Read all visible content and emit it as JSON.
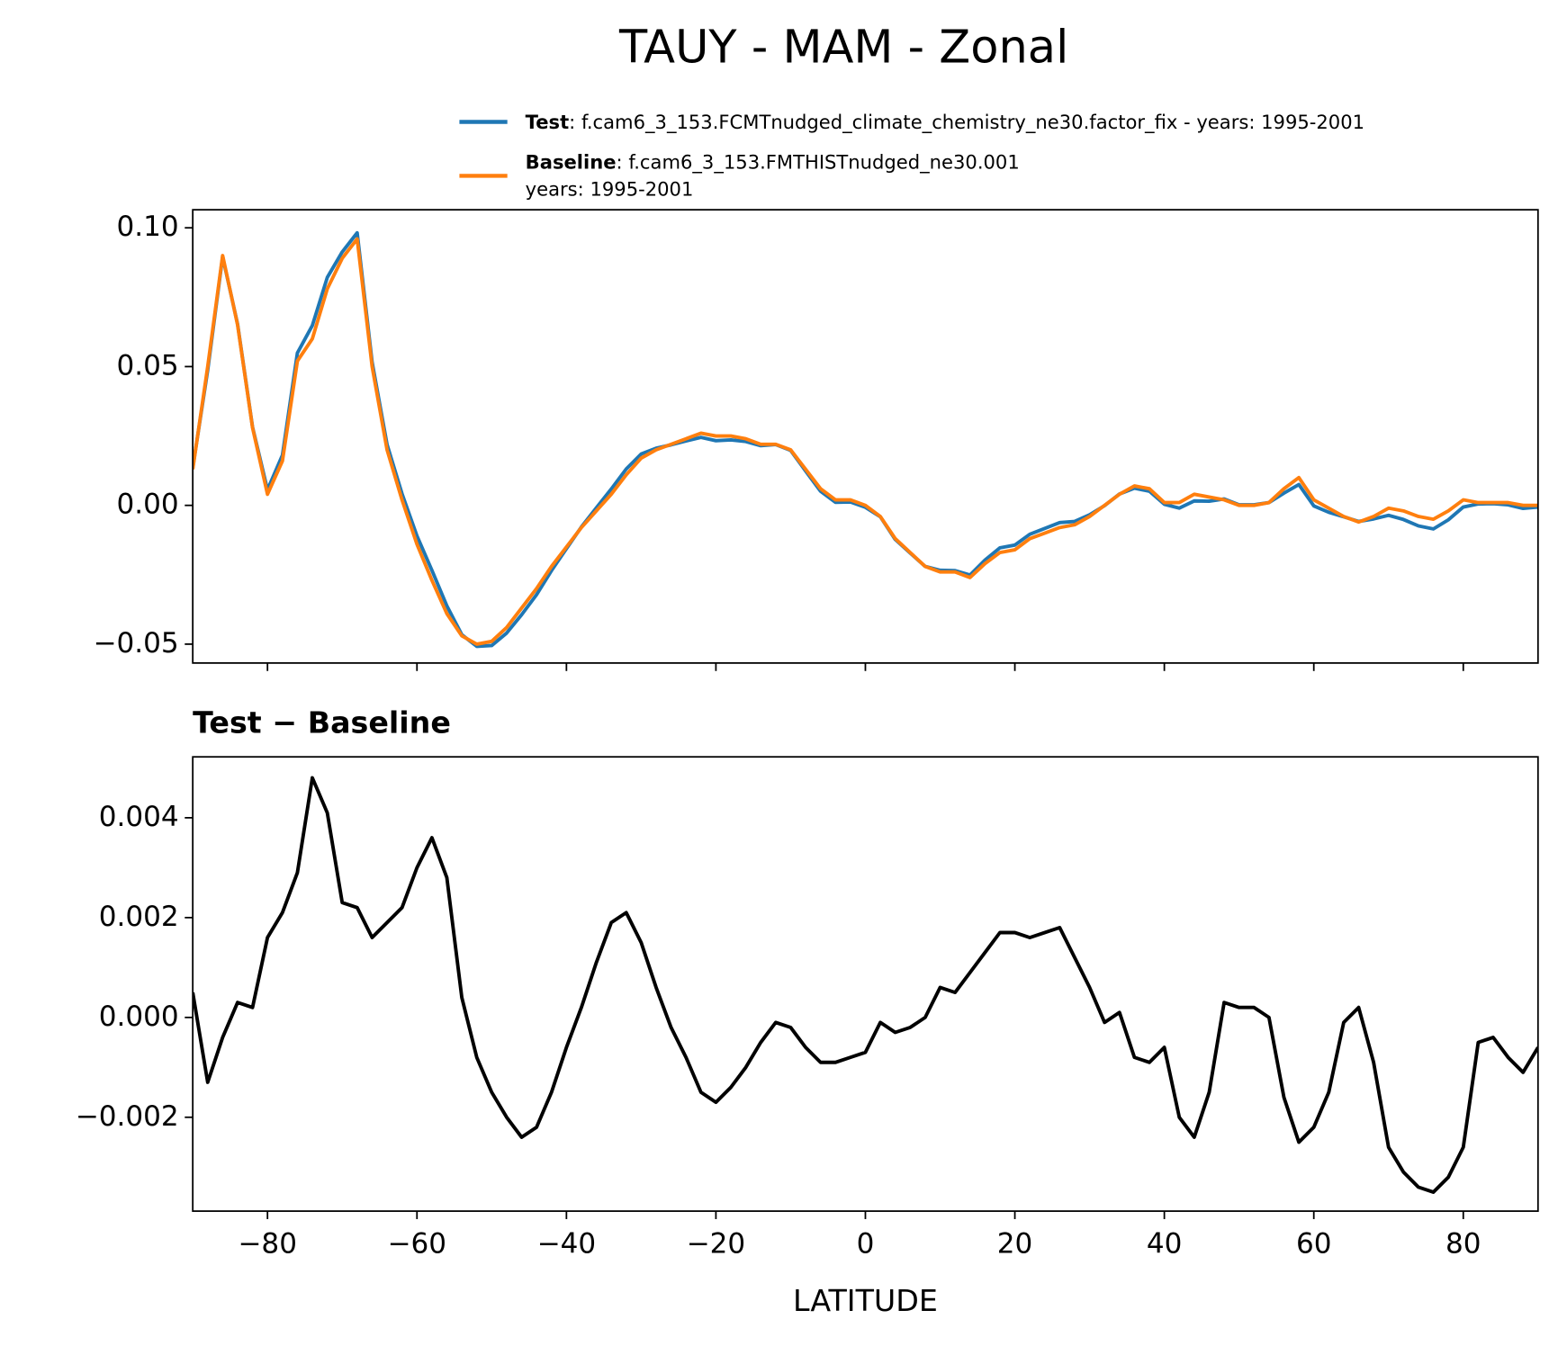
{
  "chart_data": [
    {
      "type": "line",
      "title": "TAUY - MAM - Zonal",
      "x": [
        -90,
        -88,
        -86,
        -84,
        -82,
        -80,
        -78,
        -76,
        -74,
        -72,
        -70,
        -68,
        -66,
        -64,
        -62,
        -60,
        -58,
        -56,
        -54,
        -52,
        -50,
        -48,
        -46,
        -44,
        -42,
        -40,
        -38,
        -36,
        -34,
        -32,
        -30,
        -28,
        -26,
        -24,
        -22,
        -20,
        -18,
        -16,
        -14,
        -12,
        -10,
        -8,
        -6,
        -4,
        -2,
        0,
        2,
        4,
        6,
        8,
        10,
        12,
        14,
        16,
        18,
        20,
        22,
        24,
        26,
        28,
        30,
        32,
        34,
        36,
        38,
        40,
        42,
        44,
        46,
        48,
        50,
        52,
        54,
        56,
        58,
        60,
        62,
        64,
        66,
        68,
        70,
        72,
        74,
        76,
        78,
        80,
        82,
        84,
        86,
        88,
        90
      ],
      "series": [
        {
          "name": "Test",
          "description": [
            ": f.cam6_3_153.FCMTnudged_climate_chemistry_ne30.factor_fix - years: 1995-2001"
          ],
          "color": "#1f77b4",
          "values": [
            0.0135,
            0.0487,
            0.0896,
            0.0653,
            0.0282,
            0.0056,
            0.0181,
            0.0549,
            0.0648,
            0.0821,
            0.0913,
            0.0982,
            0.0516,
            0.0219,
            0.0042,
            -0.011,
            -0.0234,
            -0.0362,
            -0.0466,
            -0.0508,
            -0.0505,
            -0.046,
            -0.0394,
            -0.0322,
            -0.0235,
            -0.0156,
            -0.0078,
            -0.0009,
            0.0059,
            0.0131,
            0.0185,
            0.0206,
            0.0218,
            0.0232,
            0.0245,
            0.0233,
            0.0236,
            0.023,
            0.0215,
            0.0219,
            0.0198,
            0.0124,
            0.0051,
            0.0011,
            0.0012,
            -0.0007,
            -0.0041,
            -0.0123,
            -0.0172,
            -0.022,
            -0.0234,
            -0.0235,
            -0.0251,
            -0.0197,
            -0.0153,
            -0.0143,
            -0.0104,
            -0.0083,
            -0.0062,
            -0.0058,
            -0.0034,
            -0.0001,
            0.0041,
            0.0062,
            0.0051,
            0.0004,
            -0.001,
            0.0016,
            0.0015,
            0.0023,
            0.0002,
            0.0002,
            0.001,
            0.0044,
            0.0075,
            -0.0002,
            -0.0025,
            -0.0041,
            -0.0058,
            -0.0049,
            -0.0036,
            -0.0051,
            -0.0074,
            -0.0085,
            -0.0052,
            -0.0006,
            0.0005,
            0.0006,
            0.0002,
            -0.0011,
            -0.0006
          ]
        },
        {
          "name": "Baseline",
          "description": [
            ": f.cam6_3_153.FMTHISTnudged_ne30.001",
            "years: 1995-2001"
          ],
          "color": "#ff7f0e",
          "values": [
            0.013,
            0.05,
            0.09,
            0.065,
            0.028,
            0.004,
            0.016,
            0.052,
            0.06,
            0.078,
            0.089,
            0.096,
            0.05,
            0.02,
            0.002,
            -0.014,
            -0.027,
            -0.039,
            -0.047,
            -0.05,
            -0.049,
            -0.044,
            -0.037,
            -0.03,
            -0.022,
            -0.015,
            -0.008,
            -0.002,
            0.004,
            0.011,
            0.017,
            0.02,
            0.022,
            0.024,
            0.026,
            0.025,
            0.025,
            0.024,
            0.022,
            0.022,
            0.02,
            0.013,
            0.006,
            0.002,
            0.002,
            0.0,
            -0.004,
            -0.012,
            -0.017,
            -0.022,
            -0.024,
            -0.024,
            -0.026,
            -0.021,
            -0.017,
            -0.016,
            -0.012,
            -0.01,
            -0.008,
            -0.007,
            -0.004,
            0.0,
            0.004,
            0.007,
            0.006,
            0.001,
            0.001,
            0.004,
            0.003,
            0.002,
            0.0,
            0.0,
            0.001,
            0.006,
            0.01,
            0.002,
            -0.001,
            -0.004,
            -0.006,
            -0.004,
            -0.001,
            -0.002,
            -0.004,
            -0.005,
            -0.002,
            0.002,
            0.001,
            0.001,
            0.001,
            0.0,
            0.0
          ]
        }
      ],
      "xlim": [
        -90,
        90
      ],
      "xticks": [
        -80,
        -60,
        -40,
        -20,
        0,
        20,
        40,
        60,
        80
      ],
      "ylim": [
        -0.0568,
        0.1065
      ],
      "yticks": [
        {
          "value": -0.05,
          "label": "−0.05"
        },
        {
          "value": 0,
          "label": "0.00"
        },
        {
          "value": 0.05,
          "label": "0.05"
        },
        {
          "value": 0.1,
          "label": "0.10"
        }
      ],
      "legend": "upper-right"
    },
    {
      "type": "line",
      "title": "Test − Baseline",
      "xlabel": "LATITUDE",
      "x": [
        -90,
        -88,
        -86,
        -84,
        -82,
        -80,
        -78,
        -76,
        -74,
        -72,
        -70,
        -68,
        -66,
        -64,
        -62,
        -60,
        -58,
        -56,
        -54,
        -52,
        -50,
        -48,
        -46,
        -44,
        -42,
        -40,
        -38,
        -36,
        -34,
        -32,
        -30,
        -28,
        -26,
        -24,
        -22,
        -20,
        -18,
        -16,
        -14,
        -12,
        -10,
        -8,
        -6,
        -4,
        -2,
        0,
        2,
        4,
        6,
        8,
        10,
        12,
        14,
        16,
        18,
        20,
        22,
        24,
        26,
        28,
        30,
        32,
        34,
        36,
        38,
        40,
        42,
        44,
        46,
        48,
        50,
        52,
        54,
        56,
        58,
        60,
        62,
        64,
        66,
        68,
        70,
        72,
        74,
        76,
        78,
        80,
        82,
        84,
        86,
        88,
        90
      ],
      "series": [
        {
          "color": "#000000",
          "values": [
            0.0005,
            -0.0013,
            -0.0004,
            0.0003,
            0.0002,
            0.0016,
            0.0021,
            0.0029,
            0.0048,
            0.0041,
            0.0023,
            0.0022,
            0.0016,
            0.0019,
            0.0022,
            0.003,
            0.0036,
            0.0028,
            0.0004,
            -0.0008,
            -0.0015,
            -0.002,
            -0.0024,
            -0.0022,
            -0.0015,
            -0.0006,
            0.0002,
            0.0011,
            0.0019,
            0.0021,
            0.0015,
            0.0006,
            -0.0002,
            -0.0008,
            -0.0015,
            -0.0017,
            -0.0014,
            -0.001,
            -0.0005,
            -0.0001,
            -0.0002,
            -0.0006,
            -0.0009,
            -0.0009,
            -0.0008,
            -0.0007,
            -0.0001,
            -0.0003,
            -0.0002,
            0.0,
            0.0006,
            0.0005,
            0.0009,
            0.0013,
            0.0017,
            0.0017,
            0.0016,
            0.0017,
            0.0018,
            0.0012,
            0.0006,
            -0.0001,
            0.0001,
            -0.0008,
            -0.0009,
            -0.0006,
            -0.002,
            -0.0024,
            -0.0015,
            0.0003,
            0.0002,
            0.0002,
            0.0,
            -0.0016,
            -0.0025,
            -0.0022,
            -0.0015,
            -0.0001,
            0.0002,
            -0.0009,
            -0.0026,
            -0.0031,
            -0.0034,
            -0.0035,
            -0.0032,
            -0.0026,
            -0.0005,
            -0.0004,
            -0.0008,
            -0.0011,
            -0.0006
          ]
        }
      ],
      "xlim": [
        -90,
        90
      ],
      "xticks": [
        {
          "value": -80,
          "label": "−80"
        },
        {
          "value": -60,
          "label": "−60"
        },
        {
          "value": -40,
          "label": "−40"
        },
        {
          "value": -20,
          "label": "−20"
        },
        0,
        20,
        40,
        60,
        80
      ],
      "ylim": [
        -0.00388,
        0.00522
      ],
      "yticks": [
        {
          "value": -0.002,
          "label": "−0.002"
        },
        {
          "value": 0,
          "label": "0.000"
        },
        0.002,
        0.004
      ]
    }
  ]
}
